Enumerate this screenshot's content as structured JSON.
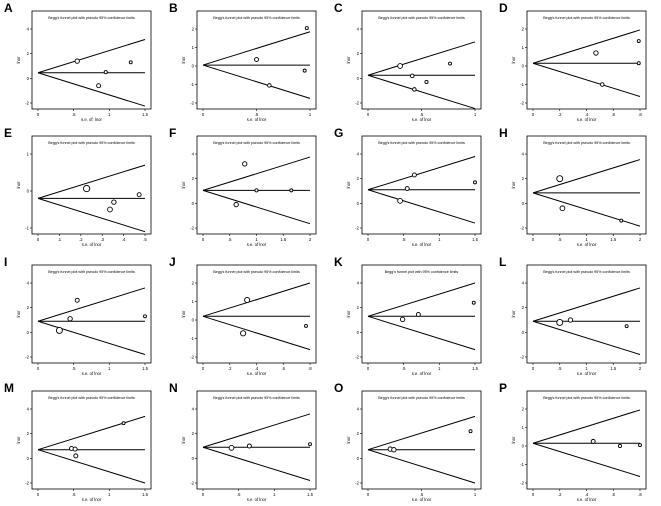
{
  "chart_data": [
    {
      "letter": "A",
      "title": "Begg's funnel plot with pseudo 95% confidence limits",
      "xlabel": "s.e. of: lnor",
      "ylabel": "lnor",
      "xlim": [
        0,
        1.5
      ],
      "ylim": [
        -2,
        4
      ],
      "xticks": [
        "0",
        ".5",
        "1",
        "1.5"
      ],
      "yticks": [
        "-2",
        "0",
        "2",
        "4"
      ],
      "pooled": 0.45,
      "points": [
        [
          0.55,
          1.4,
          2.2
        ],
        [
          0.95,
          0.5,
          1.6
        ],
        [
          1.3,
          1.3,
          1.5
        ],
        [
          0.85,
          -0.6,
          2.0
        ]
      ]
    },
    {
      "letter": "B",
      "title": "Begg's funnel plot with pseudo 95% confidence limits",
      "xlabel": "s.e. of lnor",
      "ylabel": "lnor",
      "xlim": [
        0,
        1
      ],
      "ylim": [
        -2,
        2
      ],
      "xticks": [
        "0",
        ".5",
        "1"
      ],
      "yticks": [
        "-2",
        "-1",
        "0",
        "1",
        "2"
      ],
      "pooled": 0.05,
      "points": [
        [
          0.5,
          0.35,
          2.0
        ],
        [
          0.62,
          -1.05,
          1.8
        ],
        [
          0.97,
          2.05,
          1.5
        ],
        [
          0.95,
          -0.25,
          1.5
        ]
      ]
    },
    {
      "letter": "C",
      "title": "Begg's funnel plot with pseudo 95% confidence limits",
      "xlabel": "s.e. of lnor",
      "ylabel": "lnor",
      "xlim": [
        0,
        1.5
      ],
      "ylim": [
        -2,
        4
      ],
      "xticks": [
        "0",
        ".5",
        "1"
      ],
      "yticks": [
        "-2",
        "0",
        "2",
        "4"
      ],
      "pooled": 0.25,
      "points": [
        [
          0.45,
          1.0,
          2.4
        ],
        [
          0.62,
          0.2,
          1.8
        ],
        [
          0.82,
          -0.3,
          1.6
        ],
        [
          1.15,
          1.2,
          1.5
        ],
        [
          0.65,
          -0.9,
          1.8
        ]
      ]
    },
    {
      "letter": "D",
      "title": "Begg's funnel plot with pseudo 95% confidence limits",
      "xlabel": "s.e. of lnor",
      "ylabel": "lnor",
      "xlim": [
        0,
        0.85
      ],
      "ylim": [
        -2,
        2
      ],
      "xticks": [
        "0",
        ".2",
        ".4",
        ".6",
        ".8"
      ],
      "yticks": [
        "-2",
        "-1",
        "0",
        "1",
        "2"
      ],
      "pooled": 0.15,
      "points": [
        [
          0.5,
          0.7,
          2.2
        ],
        [
          0.55,
          -1.0,
          1.8
        ],
        [
          0.84,
          1.35,
          1.5
        ],
        [
          0.84,
          0.15,
          1.5
        ]
      ]
    },
    {
      "letter": "E",
      "title": "Begg's funnel plot with pseudo 95% confidence limits",
      "xlabel": "s.e. of lnor",
      "ylabel": "lnor",
      "xlim": [
        0,
        0.55
      ],
      "ylim": [
        -1,
        2
      ],
      "xticks": [
        "0",
        ".1",
        ".2",
        ".3",
        ".4",
        ".5"
      ],
      "yticks": [
        "-1",
        "0",
        "1"
      ],
      "pooled": 0.2,
      "points": [
        [
          0.25,
          0.6,
          3.2
        ],
        [
          0.37,
          -0.25,
          2.4
        ],
        [
          0.39,
          0.05,
          2.2
        ],
        [
          0.52,
          0.35,
          2.0
        ]
      ]
    },
    {
      "letter": "F",
      "title": "Begg's funnel plot with pseudo 95% confidence limits",
      "xlabel": "s.e. of lnor",
      "ylabel": "lnor",
      "xlim": [
        0,
        2
      ],
      "ylim": [
        -2,
        4
      ],
      "xticks": [
        "0",
        ".5",
        "1",
        "1.5",
        "2"
      ],
      "yticks": [
        "-2",
        "0",
        "2",
        "4"
      ],
      "pooled": 1.05,
      "points": [
        [
          0.78,
          3.2,
          2.2
        ],
        [
          0.62,
          -0.1,
          2.2
        ],
        [
          1.0,
          1.05,
          1.6
        ],
        [
          1.65,
          1.05,
          1.5
        ]
      ]
    },
    {
      "letter": "G",
      "title": "Begg's funnel plot with pseudo 95% confidence limits",
      "xlabel": "s.e. of lnor",
      "ylabel": "lnor",
      "xlim": [
        0,
        1.5
      ],
      "ylim": [
        -2,
        4
      ],
      "xticks": [
        "0",
        ".5",
        "1",
        "1.5"
      ],
      "yticks": [
        "-2",
        "0",
        "2",
        "4"
      ],
      "pooled": 1.1,
      "points": [
        [
          0.65,
          2.3,
          2.0
        ],
        [
          0.55,
          1.2,
          2.0
        ],
        [
          0.45,
          0.2,
          2.4
        ],
        [
          1.55,
          1.7,
          1.5
        ]
      ]
    },
    {
      "letter": "H",
      "title": "Begg's funnel plot with pseudo 95% confidence limits",
      "xlabel": "s.e. of lnor",
      "ylabel": "lnor",
      "xlim": [
        0,
        2
      ],
      "ylim": [
        -2,
        4
      ],
      "xticks": [
        "0",
        ".5",
        "1",
        "1.5",
        "2"
      ],
      "yticks": [
        "-2",
        "0",
        "2",
        "4"
      ],
      "pooled": 0.85,
      "points": [
        [
          0.5,
          2.0,
          3.0
        ],
        [
          0.55,
          -0.4,
          2.4
        ],
        [
          1.65,
          -1.4,
          1.5
        ]
      ]
    },
    {
      "letter": "I",
      "title": "Begg's funnel plot with pseudo 95% confidence limits",
      "xlabel": "s.e. of lnor",
      "ylabel": "lnor",
      "xlim": [
        0,
        1.5
      ],
      "ylim": [
        -2,
        4
      ],
      "xticks": [
        "0",
        ".5",
        "1",
        "1.5"
      ],
      "yticks": [
        "-2",
        "0",
        "2",
        "4"
      ],
      "pooled": 0.9,
      "points": [
        [
          0.55,
          2.6,
          2.0
        ],
        [
          0.45,
          1.1,
          2.2
        ],
        [
          0.3,
          0.15,
          3.0
        ],
        [
          1.5,
          1.3,
          1.5
        ]
      ]
    },
    {
      "letter": "J",
      "title": "Begg's funnel plot with pseudo 95% confidence limits",
      "xlabel": "s.e. of lnor",
      "ylabel": "lnor",
      "xlim": [
        0,
        0.8
      ],
      "ylim": [
        -2,
        3
      ],
      "xticks": [
        "0",
        ".2",
        ".4",
        ".6",
        ".8"
      ],
      "yticks": [
        "-2",
        "-1",
        "0",
        "1",
        "2"
      ],
      "pooled": 0.75,
      "points": [
        [
          0.33,
          1.85,
          2.6
        ],
        [
          0.3,
          -0.4,
          2.6
        ],
        [
          0.77,
          0.1,
          1.5
        ]
      ]
    },
    {
      "letter": "K",
      "title": "Begg's funnel plot with 95% confidence limits",
      "xlabel": "s.e. of lnor",
      "ylabel": "lnor",
      "xlim": [
        0,
        1.7
      ],
      "ylim": [
        -2,
        4
      ],
      "xticks": [
        "0",
        ".5",
        "1",
        "1.5"
      ],
      "yticks": [
        "-2",
        "0",
        "2",
        "4"
      ],
      "pooled": 1.3,
      "points": [
        [
          0.55,
          1.05,
          2.2
        ],
        [
          0.8,
          1.45,
          2.0
        ],
        [
          1.68,
          2.4,
          1.5
        ]
      ]
    },
    {
      "letter": "L",
      "title": "Begg's funnel plot with pseudo 95% confidence limits",
      "xlabel": "s.e. of lnor",
      "ylabel": "lnor",
      "xlim": [
        0,
        2
      ],
      "ylim": [
        -2,
        4
      ],
      "xticks": [
        "0",
        ".5",
        "1",
        "1.5",
        "2"
      ],
      "yticks": [
        "-2",
        "0",
        "2",
        "4"
      ],
      "pooled": 0.9,
      "points": [
        [
          0.5,
          0.8,
          3.0
        ],
        [
          0.7,
          1.0,
          2.2
        ],
        [
          1.75,
          0.5,
          1.5
        ]
      ]
    },
    {
      "letter": "M",
      "title": "Begg's funnel plot with pseudo 95% confidence limits",
      "xlabel": "s.e. of lnor",
      "ylabel": "lnor",
      "xlim": [
        0,
        1.5
      ],
      "ylim": [
        -2,
        4
      ],
      "xticks": [
        "0",
        ".5",
        "1",
        "1.5"
      ],
      "yticks": [
        "-2",
        "0",
        "2",
        "4"
      ],
      "pooled": 0.7,
      "points": [
        [
          0.47,
          0.8,
          2.0
        ],
        [
          0.52,
          0.75,
          2.0
        ],
        [
          0.53,
          0.2,
          2.0
        ],
        [
          1.2,
          2.85,
          1.5
        ]
      ]
    },
    {
      "letter": "N",
      "title": "Begg's funnel plot with pseudo 95% confidence limits",
      "xlabel": "s.e. of lnor",
      "ylabel": "lnor",
      "xlim": [
        0,
        1.5
      ],
      "ylim": [
        -2,
        4
      ],
      "xticks": [
        "0",
        ".5",
        "1",
        "1.5"
      ],
      "yticks": [
        "-2",
        "0",
        "2",
        "4"
      ],
      "pooled": 0.9,
      "points": [
        [
          0.4,
          0.85,
          2.4
        ],
        [
          0.65,
          1.0,
          2.0
        ],
        [
          1.5,
          1.15,
          1.5
        ]
      ]
    },
    {
      "letter": "O",
      "title": "Begg's funnel plot with pseudo 95% confidence limits",
      "xlabel": "s.e. of lnor",
      "ylabel": "lnor",
      "xlim": [
        0,
        1.2
      ],
      "ylim": [
        -2,
        4
      ],
      "xticks": [
        "0",
        ".5",
        "1"
      ],
      "yticks": [
        "-2",
        "0",
        "2",
        "4"
      ],
      "pooled": 0.7,
      "points": [
        [
          0.25,
          0.75,
          2.2
        ],
        [
          0.29,
          0.7,
          2.2
        ],
        [
          1.15,
          2.2,
          1.5
        ]
      ]
    },
    {
      "letter": "P",
      "title": "Begg's funnel plot with pseudo 95% confidence limits",
      "xlabel": "s.e. of lnor",
      "ylabel": "lnor",
      "xlim": [
        0,
        0.8
      ],
      "ylim": [
        -2,
        2
      ],
      "xticks": [
        "0",
        ".2",
        ".4",
        ".6",
        ".8"
      ],
      "yticks": [
        "-2",
        "-1",
        "0",
        "1",
        "2"
      ],
      "pooled": 0.15,
      "points": [
        [
          0.45,
          0.25,
          2.0
        ],
        [
          0.65,
          0.0,
          1.6
        ],
        [
          0.8,
          0.05,
          1.5
        ]
      ]
    }
  ]
}
